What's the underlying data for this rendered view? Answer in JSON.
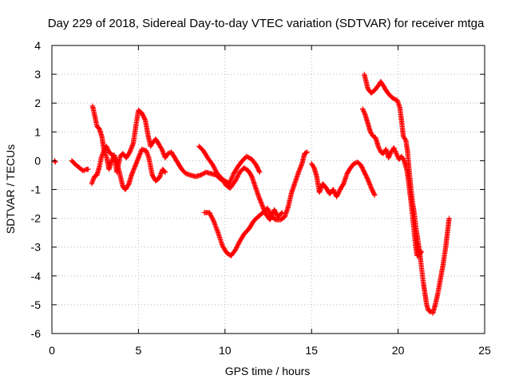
{
  "chart_data": {
    "type": "scatter",
    "title": "Day 229 of 2018, Sidereal Day-to-day VTEC variation (SDTVAR) for receiver mtga",
    "xlabel": "GPS time / hours",
    "ylabel": "SDTVAR / TECUs",
    "xlim": [
      0,
      25
    ],
    "ylim": [
      -6,
      4
    ],
    "xticks": [
      0,
      5,
      10,
      15,
      20,
      25
    ],
    "yticks": [
      -6,
      -5,
      -4,
      -3,
      -2,
      -1,
      0,
      1,
      2,
      3,
      4
    ],
    "xtick_labels": [
      "0",
      "5",
      "10",
      "15",
      "20",
      "25"
    ],
    "ytick_labels": [
      "-6",
      "-5",
      "-4",
      "-3",
      "-2",
      "-1",
      "0",
      "1",
      "2",
      "3",
      "4"
    ],
    "grid": true,
    "marker": "+",
    "color": "#ff0000",
    "series": [
      {
        "name": "SDTVAR",
        "segments": [
          [
            [
              0.15,
              0.0
            ],
            [
              0.2,
              -0.05
            ]
          ],
          [
            [
              1.15,
              0.0
            ],
            [
              1.3,
              -0.1
            ],
            [
              1.5,
              -0.2
            ],
            [
              1.8,
              -0.35
            ],
            [
              2.0,
              -0.3
            ],
            [
              2.1,
              -0.3
            ]
          ],
          [
            [
              2.3,
              -0.8
            ],
            [
              2.45,
              -0.55
            ],
            [
              2.6,
              -0.5
            ],
            [
              2.75,
              -0.2
            ],
            [
              2.85,
              0.1
            ],
            [
              3.0,
              0.35
            ],
            [
              3.15,
              0.5
            ],
            [
              3.3,
              0.3
            ],
            [
              3.5,
              0.2
            ],
            [
              3.7,
              0.05
            ],
            [
              3.9,
              -0.4
            ],
            [
              4.1,
              -0.9
            ],
            [
              4.25,
              -1.0
            ],
            [
              4.45,
              -0.8
            ],
            [
              4.6,
              -0.5
            ],
            [
              4.8,
              -0.2
            ],
            [
              5.0,
              0.1
            ],
            [
              5.2,
              0.4
            ],
            [
              5.45,
              0.35
            ],
            [
              5.6,
              0.1
            ],
            [
              5.8,
              -0.5
            ],
            [
              6.0,
              -0.7
            ],
            [
              6.2,
              -0.6
            ],
            [
              6.4,
              -0.3
            ],
            [
              6.55,
              -0.4
            ]
          ],
          [
            [
              2.35,
              1.9
            ],
            [
              2.5,
              1.5
            ],
            [
              2.6,
              1.2
            ],
            [
              2.75,
              1.1
            ],
            [
              2.9,
              0.8
            ],
            [
              3.0,
              0.4
            ],
            [
              3.15,
              0.15
            ],
            [
              3.3,
              -0.3
            ],
            [
              3.45,
              0.0
            ],
            [
              3.6,
              0.2
            ],
            [
              3.75,
              -0.4
            ],
            [
              3.95,
              0.15
            ],
            [
              4.1,
              0.25
            ],
            [
              4.3,
              0.1
            ],
            [
              4.5,
              0.3
            ],
            [
              4.7,
              0.6
            ],
            [
              4.85,
              1.2
            ],
            [
              5.0,
              1.75
            ],
            [
              5.2,
              1.65
            ],
            [
              5.4,
              1.4
            ],
            [
              5.55,
              0.9
            ],
            [
              5.7,
              0.5
            ],
            [
              5.85,
              0.65
            ],
            [
              6.0,
              0.75
            ],
            [
              6.2,
              0.55
            ],
            [
              6.35,
              0.4
            ],
            [
              6.55,
              0.1
            ],
            [
              6.7,
              0.25
            ],
            [
              6.9,
              0.3
            ],
            [
              7.1,
              0.1
            ],
            [
              7.3,
              -0.1
            ],
            [
              7.5,
              -0.3
            ],
            [
              7.75,
              -0.45
            ],
            [
              8.0,
              -0.5
            ],
            [
              8.3,
              -0.55
            ],
            [
              8.6,
              -0.5
            ],
            [
              8.9,
              -0.4
            ],
            [
              9.2,
              -0.45
            ],
            [
              9.5,
              -0.5
            ],
            [
              9.75,
              -0.65
            ],
            [
              10.0,
              -0.7
            ],
            [
              10.25,
              -0.8
            ],
            [
              10.5,
              -0.45
            ],
            [
              10.75,
              -0.2
            ],
            [
              11.0,
              0.0
            ],
            [
              11.25,
              0.15
            ],
            [
              11.55,
              0.05
            ],
            [
              11.8,
              -0.15
            ],
            [
              12.0,
              -0.4
            ]
          ],
          [
            [
              8.5,
              0.5
            ],
            [
              8.75,
              0.35
            ],
            [
              9.0,
              0.1
            ],
            [
              9.3,
              -0.15
            ],
            [
              9.55,
              -0.45
            ],
            [
              9.8,
              -0.6
            ],
            [
              10.05,
              -0.85
            ],
            [
              10.3,
              -0.95
            ],
            [
              10.6,
              -0.7
            ],
            [
              10.85,
              -0.4
            ],
            [
              11.1,
              -0.25
            ],
            [
              11.35,
              -0.35
            ],
            [
              11.55,
              -0.55
            ],
            [
              11.75,
              -0.9
            ],
            [
              11.95,
              -1.25
            ],
            [
              12.15,
              -1.55
            ],
            [
              12.35,
              -1.85
            ],
            [
              12.6,
              -2.05
            ],
            [
              12.85,
              -1.7
            ],
            [
              13.05,
              -1.95
            ],
            [
              13.3,
              -1.8
            ]
          ],
          [
            [
              8.8,
              -1.8
            ],
            [
              9.1,
              -1.8
            ],
            [
              9.35,
              -2.1
            ],
            [
              9.6,
              -2.5
            ],
            [
              9.85,
              -2.95
            ],
            [
              10.1,
              -3.2
            ],
            [
              10.35,
              -3.3
            ],
            [
              10.6,
              -3.1
            ],
            [
              10.85,
              -2.8
            ],
            [
              11.1,
              -2.55
            ],
            [
              11.4,
              -2.35
            ],
            [
              11.65,
              -2.1
            ],
            [
              11.9,
              -1.95
            ],
            [
              12.2,
              -1.8
            ],
            [
              12.45,
              -1.65
            ],
            [
              12.7,
              -1.95
            ],
            [
              12.95,
              -2.05
            ],
            [
              13.2,
              -2.05
            ],
            [
              13.45,
              -1.95
            ],
            [
              13.65,
              -1.6
            ],
            [
              13.85,
              -1.1
            ],
            [
              14.05,
              -0.75
            ],
            [
              14.25,
              -0.4
            ],
            [
              14.45,
              -0.1
            ],
            [
              14.6,
              0.25
            ],
            [
              14.75,
              0.3
            ]
          ],
          [
            [
              15.0,
              -0.1
            ],
            [
              15.15,
              -0.25
            ],
            [
              15.3,
              -0.55
            ],
            [
              15.45,
              -1.1
            ],
            [
              15.65,
              -0.8
            ],
            [
              15.85,
              -0.95
            ],
            [
              16.05,
              -1.15
            ],
            [
              16.25,
              -1.0
            ],
            [
              16.45,
              -1.25
            ],
            [
              16.65,
              -1.0
            ],
            [
              16.85,
              -0.8
            ],
            [
              17.05,
              -0.45
            ],
            [
              17.25,
              -0.25
            ],
            [
              17.45,
              -0.1
            ],
            [
              17.65,
              -0.05
            ],
            [
              17.85,
              -0.15
            ],
            [
              18.05,
              -0.4
            ],
            [
              18.25,
              -0.65
            ],
            [
              18.45,
              -0.95
            ],
            [
              18.65,
              -1.2
            ]
          ],
          [
            [
              18.05,
              3.0
            ],
            [
              18.25,
              2.5
            ],
            [
              18.45,
              2.35
            ],
            [
              18.65,
              2.45
            ],
            [
              18.85,
              2.6
            ],
            [
              19.0,
              2.75
            ],
            [
              19.15,
              2.6
            ],
            [
              19.35,
              2.4
            ],
            [
              19.55,
              2.25
            ],
            [
              19.75,
              2.15
            ],
            [
              19.95,
              2.1
            ],
            [
              20.1,
              1.85
            ],
            [
              20.2,
              1.4
            ],
            [
              20.3,
              0.85
            ],
            [
              20.45,
              0.7
            ],
            [
              20.55,
              0.3
            ],
            [
              20.65,
              -0.4
            ],
            [
              20.75,
              -1.0
            ],
            [
              20.85,
              -1.5
            ],
            [
              20.95,
              -1.9
            ],
            [
              21.05,
              -2.4
            ],
            [
              21.15,
              -2.8
            ],
            [
              21.25,
              -3.2
            ],
            [
              21.35,
              -3.7
            ],
            [
              21.45,
              -4.2
            ],
            [
              21.55,
              -4.6
            ],
            [
              21.65,
              -5.0
            ],
            [
              21.75,
              -5.2
            ],
            [
              21.9,
              -5.25
            ]
          ],
          [
            [
              17.95,
              1.8
            ],
            [
              18.1,
              1.6
            ],
            [
              18.25,
              1.3
            ],
            [
              18.4,
              1.0
            ],
            [
              18.55,
              0.85
            ],
            [
              18.7,
              0.8
            ],
            [
              18.85,
              0.5
            ],
            [
              19.0,
              0.3
            ],
            [
              19.15,
              0.25
            ],
            [
              19.3,
              0.4
            ],
            [
              19.45,
              0.1
            ],
            [
              19.6,
              0.3
            ],
            [
              19.75,
              0.45
            ],
            [
              19.9,
              0.25
            ],
            [
              20.05,
              0.05
            ],
            [
              20.2,
              0.15
            ],
            [
              20.35,
              0.0
            ],
            [
              20.5,
              -0.3
            ],
            [
              20.6,
              -0.7
            ],
            [
              20.7,
              -1.2
            ],
            [
              20.8,
              -1.7
            ],
            [
              20.9,
              -2.3
            ],
            [
              21.0,
              -2.9
            ],
            [
              21.1,
              -3.3
            ],
            [
              21.25,
              -3.25
            ],
            [
              21.35,
              -3.15
            ]
          ],
          [
            [
              22.0,
              -5.3
            ],
            [
              22.15,
              -5.0
            ],
            [
              22.3,
              -4.6
            ],
            [
              22.45,
              -4.1
            ],
            [
              22.6,
              -3.6
            ],
            [
              22.75,
              -3.0
            ],
            [
              22.85,
              -2.5
            ],
            [
              22.95,
              -2.0
            ]
          ]
        ]
      }
    ]
  }
}
